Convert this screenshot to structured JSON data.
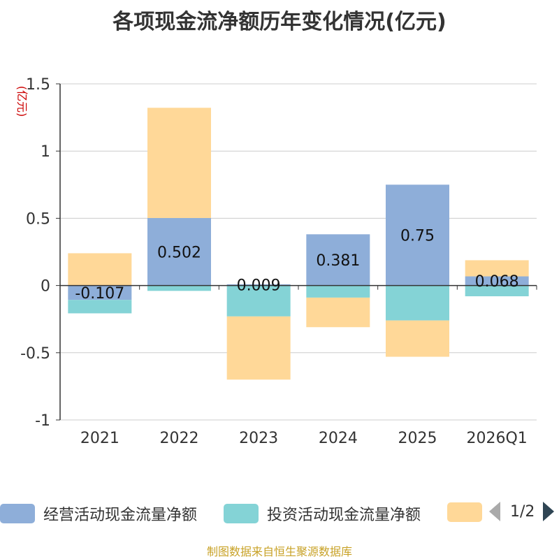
{
  "title": "各项现金流净额历年变化情况(亿元)",
  "source": "制图数据来自恒生聚源数据库",
  "legend": {
    "items": [
      {
        "label": "经营活动现金流量净额",
        "color": "#8eaed9"
      },
      {
        "label": "投资活动现金流量净额",
        "color": "#84d3d6"
      },
      {
        "label": "",
        "color": "#ffd898"
      }
    ],
    "pager": "1/2"
  },
  "chart_data": {
    "type": "bar",
    "stacked": true,
    "ylabel": "(亿元)",
    "ylabel_color": "#cc0000",
    "ylim": [
      -1,
      1.5
    ],
    "yticks": [
      "1.5",
      "1",
      "0.5",
      "0",
      "-0.5",
      "-1"
    ],
    "ytick_values": [
      1.5,
      1,
      0.5,
      0,
      -0.5,
      -1
    ],
    "grid": true,
    "legend_position": "bottom",
    "categories": [
      "2021",
      "2022",
      "2023",
      "2024",
      "2025",
      "2026Q1"
    ],
    "series": [
      {
        "name": "经营活动现金流量净额",
        "color": "#8eaed9",
        "values": [
          -0.107,
          0.502,
          0.009,
          0.381,
          0.75,
          0.068
        ],
        "labels": [
          "-0.107",
          "0.502",
          "0.009",
          "0.381",
          "0.75",
          "0.068"
        ]
      },
      {
        "name": "投资活动现金流量净额",
        "color": "#84d3d6",
        "values": [
          -0.1,
          -0.04,
          -0.23,
          -0.09,
          -0.26,
          -0.08
        ]
      },
      {
        "color": "#ffd898",
        "values": [
          0.24,
          0.82,
          -0.47,
          -0.22,
          -0.27,
          0.12
        ]
      }
    ]
  }
}
